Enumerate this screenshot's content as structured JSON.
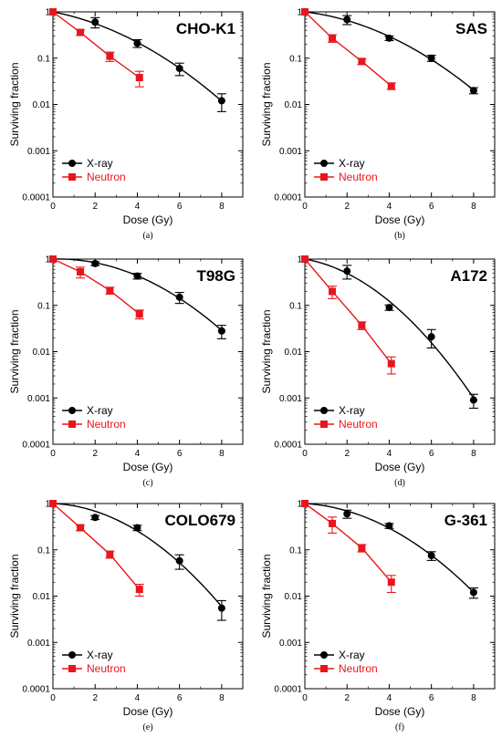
{
  "colors": {
    "xray": "#000000",
    "neutron": "#e8161c"
  },
  "chart_data": [
    {
      "type": "scatter",
      "title": "CHO-K1",
      "caption": "(a)",
      "xlabel": "Dose (Gy)",
      "ylabel": "Surviving fraction",
      "xlim": [
        0,
        9
      ],
      "ylim": [
        0.0001,
        1
      ],
      "yscale": "log",
      "xticks": [
        0,
        2,
        4,
        6,
        8
      ],
      "yticks": [
        1,
        0.1,
        0.01,
        0.001,
        0.0001
      ],
      "ytick_labels": [
        "1",
        "0.1",
        "0.01",
        "0.001",
        "0.0001"
      ],
      "legend_position": "lower-left",
      "series": [
        {
          "name": "X-ray",
          "marker": "circle",
          "x": [
            0,
            2,
            4,
            6,
            8
          ],
          "y": [
            1,
            0.6,
            0.21,
            0.06,
            0.012
          ],
          "err": [
            0,
            0.15,
            0.04,
            0.018,
            0.005
          ],
          "fit": "curve"
        },
        {
          "name": "Neutron",
          "marker": "square",
          "x": [
            0,
            1.3,
            2.7,
            4.1
          ],
          "y": [
            1,
            0.36,
            0.11,
            0.038
          ],
          "err": [
            0,
            0.05,
            0.025,
            0.014
          ],
          "fit": "line"
        }
      ]
    },
    {
      "type": "scatter",
      "title": "SAS",
      "caption": "(b)",
      "xlabel": "Dose (Gy)",
      "ylabel": "Surviving fraction",
      "xlim": [
        0,
        9
      ],
      "ylim": [
        0.0001,
        1
      ],
      "yscale": "log",
      "xticks": [
        0,
        2,
        4,
        6,
        8
      ],
      "yticks": [
        1,
        0.1,
        0.01,
        0.001,
        0.0001
      ],
      "ytick_labels": [
        "1",
        "0.1",
        "0.01",
        "0.001",
        "0.0001"
      ],
      "legend_position": "lower-left",
      "series": [
        {
          "name": "X-ray",
          "marker": "circle",
          "x": [
            0,
            2,
            4,
            6,
            8
          ],
          "y": [
            1,
            0.68,
            0.27,
            0.1,
            0.02
          ],
          "err": [
            0,
            0.15,
            0.03,
            0.015,
            0.003
          ],
          "fit": "curve"
        },
        {
          "name": "Neutron",
          "marker": "square",
          "x": [
            0,
            1.3,
            2.7,
            4.1
          ],
          "y": [
            1,
            0.27,
            0.085,
            0.025
          ],
          "err": [
            0,
            0.05,
            0.012,
            0.004
          ],
          "fit": "line"
        }
      ]
    },
    {
      "type": "scatter",
      "title": "T98G",
      "caption": "(c)",
      "xlabel": "Dose (Gy)",
      "ylabel": "Surviving fraction",
      "xlim": [
        0,
        9
      ],
      "ylim": [
        0.0001,
        1
      ],
      "yscale": "log",
      "xticks": [
        0,
        2,
        4,
        6,
        8
      ],
      "yticks": [
        1,
        0.1,
        0.01,
        0.001,
        0.0001
      ],
      "ytick_labels": [
        "1",
        "0.1",
        "0.01",
        "0.001",
        "0.0001"
      ],
      "legend_position": "lower-left",
      "series": [
        {
          "name": "X-ray",
          "marker": "circle",
          "x": [
            0,
            2,
            4,
            6,
            8
          ],
          "y": [
            1,
            0.8,
            0.43,
            0.15,
            0.028
          ],
          "err": [
            0,
            0.08,
            0.06,
            0.04,
            0.009
          ],
          "fit": "curve"
        },
        {
          "name": "Neutron",
          "marker": "square",
          "x": [
            0,
            1.3,
            2.7,
            4.1
          ],
          "y": [
            1,
            0.53,
            0.21,
            0.065
          ],
          "err": [
            0,
            0.14,
            0.035,
            0.014
          ],
          "fit": "line"
        }
      ]
    },
    {
      "type": "scatter",
      "title": "A172",
      "caption": "(d)",
      "xlabel": "Dose (Gy)",
      "ylabel": "Surviving fraction",
      "xlim": [
        0,
        9
      ],
      "ylim": [
        0.0001,
        1
      ],
      "yscale": "log",
      "xticks": [
        0,
        2,
        4,
        6,
        8
      ],
      "yticks": [
        1,
        0.1,
        0.01,
        0.001,
        0.0001
      ],
      "ytick_labels": [
        "1",
        "0.1",
        "0.01",
        "0.001",
        "0.0001"
      ],
      "legend_position": "lower-left",
      "series": [
        {
          "name": "X-ray",
          "marker": "circle",
          "x": [
            0,
            2,
            4,
            6,
            8
          ],
          "y": [
            1,
            0.55,
            0.09,
            0.021,
            0.0009
          ],
          "err": [
            0,
            0.18,
            0.012,
            0.009,
            0.0003
          ],
          "fit": "curve"
        },
        {
          "name": "Neutron",
          "marker": "square",
          "x": [
            0,
            1.3,
            2.7,
            4.1
          ],
          "y": [
            1,
            0.2,
            0.037,
            0.0055
          ],
          "err": [
            0,
            0.06,
            0.007,
            0.0022
          ],
          "fit": "line"
        }
      ]
    },
    {
      "type": "scatter",
      "title": "COLO679",
      "caption": "(e)",
      "xlabel": "Dose (Gy)",
      "ylabel": "Surviving fraction",
      "xlim": [
        0,
        9
      ],
      "ylim": [
        0.0001,
        1
      ],
      "yscale": "log",
      "xticks": [
        0,
        2,
        4,
        6,
        8
      ],
      "yticks": [
        1,
        0.1,
        0.01,
        0.001,
        0.0001
      ],
      "ytick_labels": [
        "1",
        "0.1",
        "0.01",
        "0.001",
        "0.0001"
      ],
      "legend_position": "lower-left",
      "series": [
        {
          "name": "X-ray",
          "marker": "circle",
          "x": [
            0,
            2,
            4,
            6,
            8
          ],
          "y": [
            1,
            0.5,
            0.3,
            0.058,
            0.0055
          ],
          "err": [
            0,
            0.05,
            0.04,
            0.02,
            0.0025
          ],
          "fit": "curve"
        },
        {
          "name": "Neutron",
          "marker": "square",
          "x": [
            0,
            1.3,
            2.7,
            4.1
          ],
          "y": [
            1,
            0.3,
            0.08,
            0.014
          ],
          "err": [
            0,
            0.04,
            0.014,
            0.004
          ],
          "fit": "line"
        }
      ]
    },
    {
      "type": "scatter",
      "title": "G-361",
      "caption": "(f)",
      "xlabel": "Dose (Gy)",
      "ylabel": "Surviving fraction",
      "xlim": [
        0,
        9
      ],
      "ylim": [
        0.0001,
        1
      ],
      "yscale": "log",
      "xticks": [
        0,
        2,
        4,
        6,
        8
      ],
      "yticks": [
        1,
        0.1,
        0.01,
        0.001,
        0.0001
      ],
      "ytick_labels": [
        "1",
        "0.1",
        "0.01",
        "0.001",
        "0.0001"
      ],
      "legend_position": "lower-left",
      "series": [
        {
          "name": "X-ray",
          "marker": "circle",
          "x": [
            0,
            2,
            4,
            6,
            8
          ],
          "y": [
            1,
            0.6,
            0.33,
            0.075,
            0.012
          ],
          "err": [
            0,
            0.12,
            0.04,
            0.016,
            0.003
          ],
          "fit": "curve"
        },
        {
          "name": "Neutron",
          "marker": "square",
          "x": [
            0,
            1.3,
            2.7,
            4.1
          ],
          "y": [
            1,
            0.37,
            0.11,
            0.02
          ],
          "err": [
            0,
            0.14,
            0.02,
            0.008
          ],
          "fit": "line"
        }
      ]
    }
  ]
}
